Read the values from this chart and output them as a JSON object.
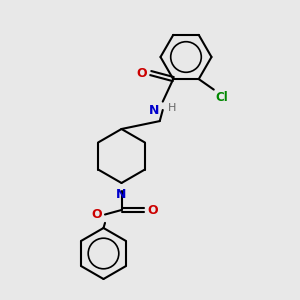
{
  "bg_color": "#e8e8e8",
  "bond_color": "#000000",
  "N_color": "#0000cc",
  "O_color": "#cc0000",
  "Cl_color": "#008800",
  "H_color": "#666666",
  "lw": 1.5,
  "figsize": [
    3.0,
    3.0
  ],
  "dpi": 100,
  "xlim": [
    0,
    10
  ],
  "ylim": [
    0,
    10
  ]
}
